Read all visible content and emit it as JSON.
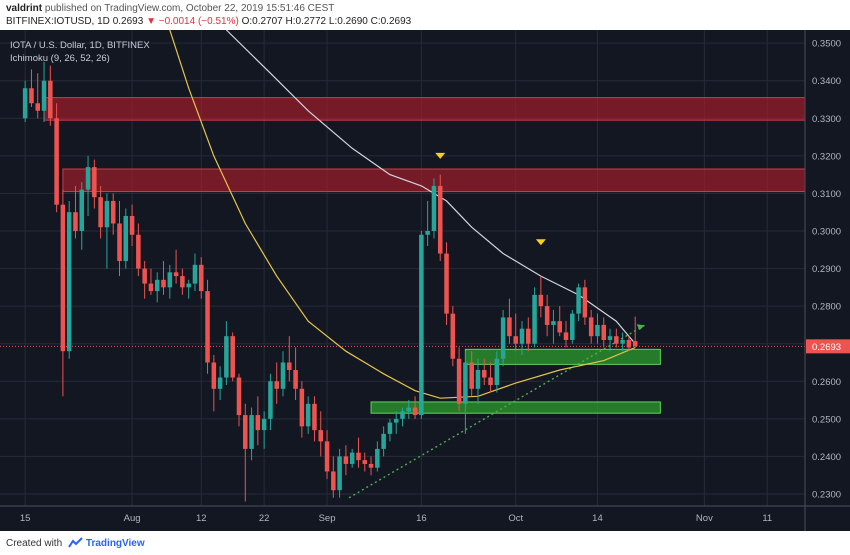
{
  "header": {
    "author": "valdrint",
    "published": "published on TradingView.com, October 22, 2019 15:51:46 CEST",
    "symbol": "BITFINEX:IOTUSD, 1D",
    "last": "0.2693",
    "change": "−0.0014 (−0.51%)",
    "ohlc": {
      "o": "O:0.2707",
      "h": "H:0.2772",
      "l": "L:0.2690",
      "c": "C:0.2693"
    }
  },
  "legend": {
    "line1": "IOTA / U.S. Dollar, 1D, BITFINEX",
    "line2": "Ichimoku (9, 26, 52, 26)"
  },
  "footer": {
    "created": "Created with",
    "brand": "TradingView"
  },
  "colors": {
    "background": "#131722",
    "up": "#26a69a",
    "down": "#ef5350",
    "resistance": "#b71c2c",
    "support": "#2e9e2e",
    "ma_fast": "#d1d4dc",
    "ma_slow": "#e6c44a",
    "trend": "#4caf50",
    "marker": "#f7d117"
  },
  "chart_data": {
    "type": "candlestick",
    "x_ticks": [
      "15",
      "Aug",
      "12",
      "22",
      "Sep",
      "16",
      "Oct",
      "14",
      "Nov",
      "11"
    ],
    "x_tick_days": [
      0,
      17,
      28,
      38,
      48,
      63,
      78,
      91,
      108,
      118
    ],
    "y_ticks": [
      "0.2300",
      "0.2400",
      "0.2500",
      "0.2600",
      "0.2700",
      "0.2800",
      "0.2900",
      "0.3000",
      "0.3100",
      "0.3200",
      "0.3300",
      "0.3400",
      "0.3500"
    ],
    "ylim": [
      0.2268,
      0.3535
    ],
    "xlim": [
      -4,
      124
    ],
    "current_price": 0.2693,
    "current_price_label": "0.2693",
    "resistance_zones": [
      {
        "from": 0.3295,
        "to": 0.3355,
        "x_start": 3,
        "x_end": 124
      },
      {
        "from": 0.3105,
        "to": 0.3165,
        "x_start": 6,
        "x_end": 124
      }
    ],
    "support_zones": [
      {
        "from": 0.2645,
        "to": 0.2685,
        "x_start": 70,
        "x_end": 101
      },
      {
        "from": 0.2515,
        "to": 0.2545,
        "x_start": 55,
        "x_end": 101
      }
    ],
    "trendline": {
      "x1": 51.5,
      "y1": 0.229,
      "x2": 98.5,
      "y2": 0.2749
    },
    "markers": [
      {
        "x": 66,
        "y": 0.32
      },
      {
        "x": 82,
        "y": 0.297
      }
    ],
    "ma_fast": [
      [
        32,
        0.3535
      ],
      [
        39,
        0.342
      ],
      [
        45,
        0.332
      ],
      [
        52,
        0.322
      ],
      [
        58,
        0.315
      ],
      [
        63,
        0.312
      ],
      [
        67,
        0.308
      ],
      [
        71,
        0.301
      ],
      [
        76,
        0.294
      ],
      [
        82,
        0.288
      ],
      [
        88,
        0.283
      ],
      [
        94,
        0.276
      ],
      [
        97,
        0.27
      ]
    ],
    "ma_slow": [
      [
        23,
        0.3535
      ],
      [
        26,
        0.338
      ],
      [
        30,
        0.32
      ],
      [
        35,
        0.302
      ],
      [
        40,
        0.288
      ],
      [
        45,
        0.276
      ],
      [
        51,
        0.268
      ],
      [
        57,
        0.262
      ],
      [
        62,
        0.2575
      ],
      [
        66,
        0.2555
      ],
      [
        72,
        0.256
      ],
      [
        78,
        0.2595
      ],
      [
        85,
        0.263
      ],
      [
        92,
        0.2655
      ],
      [
        97,
        0.269
      ]
    ],
    "candles": [
      {
        "o": 0.33,
        "h": 0.34,
        "l": 0.329,
        "c": 0.338
      },
      {
        "o": 0.338,
        "h": 0.343,
        "l": 0.333,
        "c": 0.334
      },
      {
        "o": 0.334,
        "h": 0.342,
        "l": 0.33,
        "c": 0.332
      },
      {
        "o": 0.332,
        "h": 0.345,
        "l": 0.329,
        "c": 0.34
      },
      {
        "o": 0.34,
        "h": 0.344,
        "l": 0.328,
        "c": 0.33
      },
      {
        "o": 0.33,
        "h": 0.334,
        "l": 0.305,
        "c": 0.307
      },
      {
        "o": 0.307,
        "h": 0.311,
        "l": 0.256,
        "c": 0.268
      },
      {
        "o": 0.268,
        "h": 0.308,
        "l": 0.266,
        "c": 0.305
      },
      {
        "o": 0.305,
        "h": 0.312,
        "l": 0.298,
        "c": 0.3
      },
      {
        "o": 0.3,
        "h": 0.313,
        "l": 0.295,
        "c": 0.311
      },
      {
        "o": 0.311,
        "h": 0.32,
        "l": 0.304,
        "c": 0.317
      },
      {
        "o": 0.317,
        "h": 0.319,
        "l": 0.306,
        "c": 0.309
      },
      {
        "o": 0.309,
        "h": 0.312,
        "l": 0.298,
        "c": 0.301
      },
      {
        "o": 0.301,
        "h": 0.31,
        "l": 0.29,
        "c": 0.308
      },
      {
        "o": 0.308,
        "h": 0.31,
        "l": 0.299,
        "c": 0.302
      },
      {
        "o": 0.302,
        "h": 0.308,
        "l": 0.288,
        "c": 0.292
      },
      {
        "o": 0.292,
        "h": 0.306,
        "l": 0.29,
        "c": 0.304
      },
      {
        "o": 0.304,
        "h": 0.307,
        "l": 0.296,
        "c": 0.299
      },
      {
        "o": 0.299,
        "h": 0.302,
        "l": 0.288,
        "c": 0.29
      },
      {
        "o": 0.29,
        "h": 0.292,
        "l": 0.282,
        "c": 0.286
      },
      {
        "o": 0.286,
        "h": 0.29,
        "l": 0.283,
        "c": 0.284
      },
      {
        "o": 0.284,
        "h": 0.289,
        "l": 0.281,
        "c": 0.287
      },
      {
        "o": 0.287,
        "h": 0.292,
        "l": 0.283,
        "c": 0.285
      },
      {
        "o": 0.285,
        "h": 0.291,
        "l": 0.282,
        "c": 0.289
      },
      {
        "o": 0.289,
        "h": 0.295,
        "l": 0.286,
        "c": 0.288
      },
      {
        "o": 0.288,
        "h": 0.29,
        "l": 0.283,
        "c": 0.285
      },
      {
        "o": 0.285,
        "h": 0.287,
        "l": 0.282,
        "c": 0.286
      },
      {
        "o": 0.286,
        "h": 0.294,
        "l": 0.284,
        "c": 0.291
      },
      {
        "o": 0.291,
        "h": 0.293,
        "l": 0.282,
        "c": 0.284
      },
      {
        "o": 0.284,
        "h": 0.287,
        "l": 0.262,
        "c": 0.265
      },
      {
        "o": 0.265,
        "h": 0.267,
        "l": 0.252,
        "c": 0.258
      },
      {
        "o": 0.258,
        "h": 0.264,
        "l": 0.255,
        "c": 0.261
      },
      {
        "o": 0.261,
        "h": 0.276,
        "l": 0.259,
        "c": 0.272
      },
      {
        "o": 0.272,
        "h": 0.273,
        "l": 0.26,
        "c": 0.261
      },
      {
        "o": 0.261,
        "h": 0.262,
        "l": 0.248,
        "c": 0.251
      },
      {
        "o": 0.251,
        "h": 0.254,
        "l": 0.228,
        "c": 0.242
      },
      {
        "o": 0.242,
        "h": 0.253,
        "l": 0.239,
        "c": 0.251
      },
      {
        "o": 0.251,
        "h": 0.256,
        "l": 0.243,
        "c": 0.247
      },
      {
        "o": 0.247,
        "h": 0.252,
        "l": 0.242,
        "c": 0.25
      },
      {
        "o": 0.25,
        "h": 0.262,
        "l": 0.247,
        "c": 0.26
      },
      {
        "o": 0.26,
        "h": 0.265,
        "l": 0.254,
        "c": 0.258
      },
      {
        "o": 0.258,
        "h": 0.268,
        "l": 0.256,
        "c": 0.265
      },
      {
        "o": 0.265,
        "h": 0.272,
        "l": 0.26,
        "c": 0.263
      },
      {
        "o": 0.263,
        "h": 0.269,
        "l": 0.255,
        "c": 0.258
      },
      {
        "o": 0.258,
        "h": 0.26,
        "l": 0.245,
        "c": 0.248
      },
      {
        "o": 0.248,
        "h": 0.256,
        "l": 0.246,
        "c": 0.254
      },
      {
        "o": 0.254,
        "h": 0.256,
        "l": 0.244,
        "c": 0.247
      },
      {
        "o": 0.247,
        "h": 0.252,
        "l": 0.24,
        "c": 0.244
      },
      {
        "o": 0.244,
        "h": 0.247,
        "l": 0.234,
        "c": 0.236
      },
      {
        "o": 0.236,
        "h": 0.24,
        "l": 0.229,
        "c": 0.231
      },
      {
        "o": 0.231,
        "h": 0.242,
        "l": 0.229,
        "c": 0.24
      },
      {
        "o": 0.24,
        "h": 0.243,
        "l": 0.235,
        "c": 0.238
      },
      {
        "o": 0.238,
        "h": 0.242,
        "l": 0.237,
        "c": 0.241
      },
      {
        "o": 0.241,
        "h": 0.245,
        "l": 0.237,
        "c": 0.239
      },
      {
        "o": 0.239,
        "h": 0.241,
        "l": 0.236,
        "c": 0.238
      },
      {
        "o": 0.238,
        "h": 0.24,
        "l": 0.235,
        "c": 0.237
      },
      {
        "o": 0.237,
        "h": 0.244,
        "l": 0.236,
        "c": 0.242
      },
      {
        "o": 0.242,
        "h": 0.248,
        "l": 0.24,
        "c": 0.246
      },
      {
        "o": 0.246,
        "h": 0.25,
        "l": 0.244,
        "c": 0.249
      },
      {
        "o": 0.249,
        "h": 0.252,
        "l": 0.246,
        "c": 0.25
      },
      {
        "o": 0.25,
        "h": 0.253,
        "l": 0.248,
        "c": 0.252
      },
      {
        "o": 0.252,
        "h": 0.255,
        "l": 0.25,
        "c": 0.253
      },
      {
        "o": 0.253,
        "h": 0.256,
        "l": 0.25,
        "c": 0.251
      },
      {
        "o": 0.251,
        "h": 0.3,
        "l": 0.25,
        "c": 0.299
      },
      {
        "o": 0.299,
        "h": 0.308,
        "l": 0.296,
        "c": 0.3
      },
      {
        "o": 0.3,
        "h": 0.314,
        "l": 0.298,
        "c": 0.312
      },
      {
        "o": 0.312,
        "h": 0.315,
        "l": 0.292,
        "c": 0.294
      },
      {
        "o": 0.294,
        "h": 0.297,
        "l": 0.275,
        "c": 0.278
      },
      {
        "o": 0.278,
        "h": 0.28,
        "l": 0.264,
        "c": 0.266
      },
      {
        "o": 0.266,
        "h": 0.269,
        "l": 0.252,
        "c": 0.254
      },
      {
        "o": 0.254,
        "h": 0.268,
        "l": 0.246,
        "c": 0.265
      },
      {
        "o": 0.265,
        "h": 0.268,
        "l": 0.256,
        "c": 0.258
      },
      {
        "o": 0.258,
        "h": 0.266,
        "l": 0.254,
        "c": 0.263
      },
      {
        "o": 0.263,
        "h": 0.266,
        "l": 0.259,
        "c": 0.261
      },
      {
        "o": 0.261,
        "h": 0.265,
        "l": 0.257,
        "c": 0.259
      },
      {
        "o": 0.259,
        "h": 0.268,
        "l": 0.257,
        "c": 0.266
      },
      {
        "o": 0.266,
        "h": 0.279,
        "l": 0.264,
        "c": 0.277
      },
      {
        "o": 0.277,
        "h": 0.282,
        "l": 0.27,
        "c": 0.272
      },
      {
        "o": 0.272,
        "h": 0.278,
        "l": 0.268,
        "c": 0.27
      },
      {
        "o": 0.27,
        "h": 0.276,
        "l": 0.267,
        "c": 0.274
      },
      {
        "o": 0.274,
        "h": 0.277,
        "l": 0.268,
        "c": 0.27
      },
      {
        "o": 0.27,
        "h": 0.285,
        "l": 0.269,
        "c": 0.283
      },
      {
        "o": 0.283,
        "h": 0.288,
        "l": 0.277,
        "c": 0.28
      },
      {
        "o": 0.28,
        "h": 0.283,
        "l": 0.272,
        "c": 0.275
      },
      {
        "o": 0.275,
        "h": 0.279,
        "l": 0.27,
        "c": 0.276
      },
      {
        "o": 0.276,
        "h": 0.28,
        "l": 0.272,
        "c": 0.273
      },
      {
        "o": 0.273,
        "h": 0.276,
        "l": 0.269,
        "c": 0.271
      },
      {
        "o": 0.271,
        "h": 0.279,
        "l": 0.27,
        "c": 0.278
      },
      {
        "o": 0.278,
        "h": 0.286,
        "l": 0.276,
        "c": 0.285
      },
      {
        "o": 0.285,
        "h": 0.287,
        "l": 0.275,
        "c": 0.277
      },
      {
        "o": 0.277,
        "h": 0.279,
        "l": 0.27,
        "c": 0.272
      },
      {
        "o": 0.272,
        "h": 0.278,
        "l": 0.27,
        "c": 0.275
      },
      {
        "o": 0.275,
        "h": 0.277,
        "l": 0.269,
        "c": 0.271
      },
      {
        "o": 0.271,
        "h": 0.274,
        "l": 0.268,
        "c": 0.272
      },
      {
        "o": 0.272,
        "h": 0.274,
        "l": 0.269,
        "c": 0.27
      },
      {
        "o": 0.27,
        "h": 0.273,
        "l": 0.268,
        "c": 0.271
      },
      {
        "o": 0.271,
        "h": 0.272,
        "l": 0.268,
        "c": 0.269
      },
      {
        "o": 0.2707,
        "h": 0.2772,
        "l": 0.269,
        "c": 0.2693
      }
    ]
  }
}
